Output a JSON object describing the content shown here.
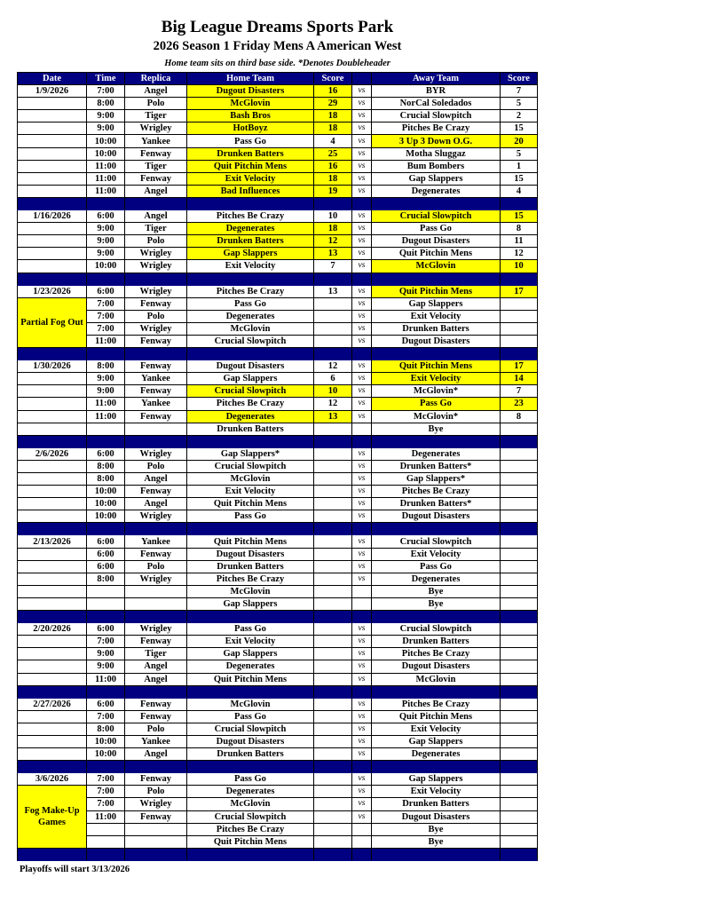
{
  "header": {
    "title": "Big League Dreams Sports Park",
    "subtitle": "2026 Season 1 Friday Mens A American West",
    "note": "Home team sits on third base side.  *Denotes Doubleheader"
  },
  "colors": {
    "header_bg": "#000080",
    "winner_highlight": "#ffff00"
  },
  "columns": [
    "Date",
    "Time",
    "Replica",
    "Home Team",
    "Score",
    "",
    "Away Team",
    "Score"
  ],
  "vs_label": "vs",
  "sections": [
    {
      "date": "1/9/2026",
      "games": [
        {
          "time": "7:00",
          "replica": "Angel",
          "home": "Dugout Disasters",
          "home_score": "16",
          "away": "BYR",
          "away_score": "7",
          "winner": "home"
        },
        {
          "time": "8:00",
          "replica": "Polo",
          "home": "McGlovin",
          "home_score": "29",
          "away": "NorCal Soledados",
          "away_score": "5",
          "winner": "home"
        },
        {
          "time": "9:00",
          "replica": "Tiger",
          "home": "Bash Bros",
          "home_score": "18",
          "away": "Crucial Slowpitch",
          "away_score": "2",
          "winner": "home"
        },
        {
          "time": "9:00",
          "replica": "Wrigley",
          "home": "HotBoyz",
          "home_score": "18",
          "away": "Pitches Be Crazy",
          "away_score": "15",
          "winner": "home"
        },
        {
          "time": "10:00",
          "replica": "Yankee",
          "home": "Pass Go",
          "home_score": "4",
          "away": "3 Up 3 Down O.G.",
          "away_score": "20",
          "winner": "away"
        },
        {
          "time": "10:00",
          "replica": "Fenway",
          "home": "Drunken Batters",
          "home_score": "25",
          "away": "Motha Sluggaz",
          "away_score": "5",
          "winner": "home"
        },
        {
          "time": "11:00",
          "replica": "Tiger",
          "home": "Quit Pitchin Mens",
          "home_score": "16",
          "away": "Bum Bombers",
          "away_score": "1",
          "winner": "home"
        },
        {
          "time": "11:00",
          "replica": "Fenway",
          "home": "Exit Velocity",
          "home_score": "18",
          "away": "Gap Slappers",
          "away_score": "15",
          "winner": "home"
        },
        {
          "time": "11:00",
          "replica": "Angel",
          "home": "Bad Influences",
          "home_score": "19",
          "away": "Degenerates",
          "away_score": "4",
          "winner": "home"
        }
      ]
    },
    {
      "date": "1/16/2026",
      "games": [
        {
          "time": "6:00",
          "replica": "Angel",
          "home": "Pitches Be Crazy",
          "home_score": "10",
          "away": "Crucial Slowpitch",
          "away_score": "15",
          "winner": "away"
        },
        {
          "time": "9:00",
          "replica": "Tiger",
          "home": "Degenerates",
          "home_score": "18",
          "away": "Pass Go",
          "away_score": "8",
          "winner": "home"
        },
        {
          "time": "9:00",
          "replica": "Polo",
          "home": "Drunken Batters",
          "home_score": "12",
          "away": "Dugout Disasters",
          "away_score": "11",
          "winner": "home"
        },
        {
          "time": "9:00",
          "replica": "Wrigley",
          "home": "Gap Slappers",
          "home_score": "13",
          "away": "Quit Pitchin Mens",
          "away_score": "12",
          "winner": "home"
        },
        {
          "time": "10:00",
          "replica": "Wrigley",
          "home": "Exit Velocity",
          "home_score": "7",
          "away": "McGlovin",
          "away_score": "10",
          "winner": "away"
        }
      ]
    },
    {
      "date": "1/23/2026",
      "note": "Partial Fog Out",
      "note_rows": 4,
      "games": [
        {
          "time": "6:00",
          "replica": "Wrigley",
          "home": "Pitches Be Crazy",
          "home_score": "13",
          "away": "Quit Pitchin Mens",
          "away_score": "17",
          "winner": "away"
        },
        {
          "time": "7:00",
          "replica": "Fenway",
          "home": "Pass Go",
          "home_score": "",
          "away": "Gap Slappers",
          "away_score": ""
        },
        {
          "time": "7:00",
          "replica": "Polo",
          "home": "Degenerates",
          "home_score": "",
          "away": "Exit Velocity",
          "away_score": ""
        },
        {
          "time": "7:00",
          "replica": "Wrigley",
          "home": "McGlovin",
          "home_score": "",
          "away": "Drunken Batters",
          "away_score": ""
        },
        {
          "time": "11:00",
          "replica": "Fenway",
          "home": "Crucial Slowpitch",
          "home_score": "",
          "away": "Dugout Disasters",
          "away_score": ""
        }
      ]
    },
    {
      "date": "1/30/2026",
      "games": [
        {
          "time": "8:00",
          "replica": "Fenway",
          "home": "Dugout Disasters",
          "home_score": "12",
          "away": "Quit Pitchin Mens",
          "away_score": "17",
          "winner": "away"
        },
        {
          "time": "9:00",
          "replica": "Yankee",
          "home": "Gap Slappers",
          "home_score": "6",
          "away": "Exit Velocity",
          "away_score": "14",
          "winner": "away"
        },
        {
          "time": "9:00",
          "replica": "Fenway",
          "home": "Crucial Slowpitch",
          "home_score": "10",
          "away": "McGlovin*",
          "away_score": "7",
          "winner": "home"
        },
        {
          "time": "11:00",
          "replica": "Yankee",
          "home": "Pitches Be Crazy",
          "home_score": "12",
          "away": "Pass Go",
          "away_score": "23",
          "winner": "away"
        },
        {
          "time": "11:00",
          "replica": "Fenway",
          "home": "Degenerates",
          "home_score": "13",
          "away": "McGlovin*",
          "away_score": "8",
          "winner": "home"
        },
        {
          "time": "",
          "replica": "",
          "home": "Drunken Batters",
          "home_score": "",
          "away": "Bye",
          "away_score": "",
          "bye": true
        }
      ]
    },
    {
      "date": "2/6/2026",
      "games": [
        {
          "time": "6:00",
          "replica": "Wrigley",
          "home": "Gap Slappers*",
          "home_score": "",
          "away": "Degenerates",
          "away_score": ""
        },
        {
          "time": "8:00",
          "replica": "Polo",
          "home": "Crucial Slowpitch",
          "home_score": "",
          "away": "Drunken Batters*",
          "away_score": ""
        },
        {
          "time": "8:00",
          "replica": "Angel",
          "home": "McGlovin",
          "home_score": "",
          "away": "Gap Slappers*",
          "away_score": ""
        },
        {
          "time": "10:00",
          "replica": "Fenway",
          "home": "Exit Velocity",
          "home_score": "",
          "away": "Pitches Be Crazy",
          "away_score": ""
        },
        {
          "time": "10:00",
          "replica": "Angel",
          "home": "Quit Pitchin Mens",
          "home_score": "",
          "away": "Drunken Batters*",
          "away_score": ""
        },
        {
          "time": "10:00",
          "replica": "Wrigley",
          "home": "Pass Go",
          "home_score": "",
          "away": "Dugout Disasters",
          "away_score": ""
        }
      ]
    },
    {
      "date": "2/13/2026",
      "games": [
        {
          "time": "6:00",
          "replica": "Yankee",
          "home": "Quit Pitchin Mens",
          "home_score": "",
          "away": "Crucial Slowpitch",
          "away_score": ""
        },
        {
          "time": "6:00",
          "replica": "Fenway",
          "home": "Dugout Disasters",
          "home_score": "",
          "away": "Exit Velocity",
          "away_score": ""
        },
        {
          "time": "6:00",
          "replica": "Polo",
          "home": "Drunken Batters",
          "home_score": "",
          "away": "Pass Go",
          "away_score": ""
        },
        {
          "time": "8:00",
          "replica": "Wrigley",
          "home": "Pitches Be Crazy",
          "home_score": "",
          "away": "Degenerates",
          "away_score": ""
        },
        {
          "time": "",
          "replica": "",
          "home": "McGlovin",
          "home_score": "",
          "away": "Bye",
          "away_score": "",
          "bye": true
        },
        {
          "time": "",
          "replica": "",
          "home": "Gap Slappers",
          "home_score": "",
          "away": "Bye",
          "away_score": "",
          "bye": true
        }
      ]
    },
    {
      "date": "2/20/2026",
      "games": [
        {
          "time": "6:00",
          "replica": "Wrigley",
          "home": "Pass Go",
          "home_score": "",
          "away": "Crucial Slowpitch",
          "away_score": ""
        },
        {
          "time": "7:00",
          "replica": "Fenway",
          "home": "Exit Velocity",
          "home_score": "",
          "away": "Drunken Batters",
          "away_score": ""
        },
        {
          "time": "9:00",
          "replica": "Tiger",
          "home": "Gap Slappers",
          "home_score": "",
          "away": "Pitches Be Crazy",
          "away_score": ""
        },
        {
          "time": "9:00",
          "replica": "Angel",
          "home": "Degenerates",
          "home_score": "",
          "away": "Dugout Disasters",
          "away_score": ""
        },
        {
          "time": "11:00",
          "replica": "Angel",
          "home": "Quit Pitchin Mens",
          "home_score": "",
          "away": "McGlovin",
          "away_score": ""
        }
      ]
    },
    {
      "date": "2/27/2026",
      "games": [
        {
          "time": "6:00",
          "replica": "Fenway",
          "home": "McGlovin",
          "home_score": "",
          "away": "Pitches Be Crazy",
          "away_score": ""
        },
        {
          "time": "7:00",
          "replica": "Fenway",
          "home": "Pass Go",
          "home_score": "",
          "away": "Quit Pitchin Mens",
          "away_score": ""
        },
        {
          "time": "8:00",
          "replica": "Polo",
          "home": "Crucial Slowpitch",
          "home_score": "",
          "away": "Exit Velocity",
          "away_score": ""
        },
        {
          "time": "10:00",
          "replica": "Yankee",
          "home": "Dugout Disasters",
          "home_score": "",
          "away": "Gap Slappers",
          "away_score": ""
        },
        {
          "time": "10:00",
          "replica": "Angel",
          "home": "Drunken Batters",
          "home_score": "",
          "away": "Degenerates",
          "away_score": ""
        }
      ]
    },
    {
      "date": "3/6/2026",
      "note": "Fog Make-Up Games",
      "note_rows": 5,
      "games": [
        {
          "time": "7:00",
          "replica": "Fenway",
          "home": "Pass Go",
          "home_score": "",
          "away": "Gap Slappers",
          "away_score": ""
        },
        {
          "time": "7:00",
          "replica": "Polo",
          "home": "Degenerates",
          "home_score": "",
          "away": "Exit Velocity",
          "away_score": ""
        },
        {
          "time": "7:00",
          "replica": "Wrigley",
          "home": "McGlovin",
          "home_score": "",
          "away": "Drunken Batters",
          "away_score": ""
        },
        {
          "time": "11:00",
          "replica": "Fenway",
          "home": "Crucial Slowpitch",
          "home_score": "",
          "away": "Dugout Disasters",
          "away_score": ""
        },
        {
          "time": "",
          "replica": "",
          "home": "Pitches Be Crazy",
          "home_score": "",
          "away": "Bye",
          "away_score": "",
          "bye": true
        },
        {
          "time": "",
          "replica": "",
          "home": "Quit Pitchin Mens",
          "home_score": "",
          "away": "Bye",
          "away_score": "",
          "bye": true
        }
      ]
    }
  ],
  "footer": "Playoffs will start 3/13/2026"
}
